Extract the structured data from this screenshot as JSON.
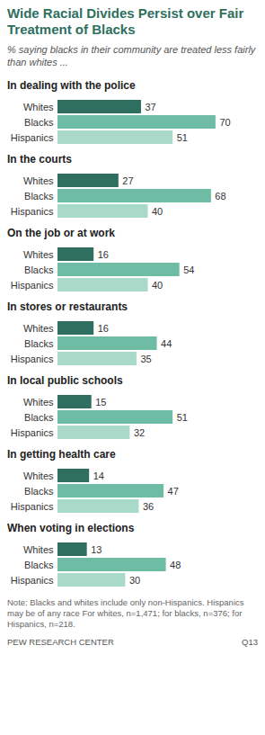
{
  "title": "Wide Racial Divides Persist over Fair Treatment of Blacks",
  "subtitle": "% saying blacks in their community are treated less fairly than whites ...",
  "note": "Note: Blacks and whites include only non-Hispanics. Hispanics may be of any race For whites, n=1,471; for blacks, n=376; for Hispanics, n=218.",
  "source": "PEW RESEARCH CENTER",
  "code": "Q13",
  "chart_data": [
    {
      "type": "bar",
      "title": "In dealing with the police",
      "categories": [
        "Whites",
        "Blacks",
        "Hispanics"
      ],
      "values": [
        37,
        70,
        51
      ],
      "colors": [
        "#2e6f60",
        "#6dbca3",
        "#a9d9c8"
      ],
      "orientation": "horizontal",
      "data_labels": true,
      "tick_labels": "y",
      "xlim": [
        0,
        80
      ],
      "xticks": []
    },
    {
      "type": "bar",
      "title": "In the courts",
      "categories": [
        "Whites",
        "Blacks",
        "Hispanics"
      ],
      "values": [
        27,
        68,
        40
      ],
      "colors": [
        "#2e6f60",
        "#6dbca3",
        "#a9d9c8"
      ],
      "orientation": "horizontal",
      "data_labels": true,
      "tick_labels": "y",
      "xlim": [
        0,
        80
      ],
      "xticks": []
    },
    {
      "type": "bar",
      "title": "On the job or at work",
      "categories": [
        "Whites",
        "Blacks",
        "Hispanics"
      ],
      "values": [
        16,
        54,
        40
      ],
      "colors": [
        "#2e6f60",
        "#6dbca3",
        "#a9d9c8"
      ],
      "orientation": "horizontal",
      "data_labels": true,
      "tick_labels": "y",
      "xlim": [
        0,
        80
      ],
      "xticks": []
    },
    {
      "type": "bar",
      "title": "In stores or restaurants",
      "categories": [
        "Whites",
        "Blacks",
        "Hispanics"
      ],
      "values": [
        16,
        44,
        35
      ],
      "colors": [
        "#2e6f60",
        "#6dbca3",
        "#a9d9c8"
      ],
      "orientation": "horizontal",
      "data_labels": true,
      "tick_labels": "y",
      "xlim": [
        0,
        80
      ],
      "xticks": []
    },
    {
      "type": "bar",
      "title": "In local public schools",
      "categories": [
        "Whites",
        "Blacks",
        "Hispanics"
      ],
      "values": [
        15,
        51,
        32
      ],
      "colors": [
        "#2e6f60",
        "#6dbca3",
        "#a9d9c8"
      ],
      "orientation": "horizontal",
      "data_labels": true,
      "tick_labels": "y",
      "xlim": [
        0,
        80
      ],
      "xticks": []
    },
    {
      "type": "bar",
      "title": "In getting health care",
      "categories": [
        "Whites",
        "Blacks",
        "Hispanics"
      ],
      "values": [
        14,
        47,
        36
      ],
      "colors": [
        "#2e6f60",
        "#6dbca3",
        "#a9d9c8"
      ],
      "orientation": "horizontal",
      "data_labels": true,
      "tick_labels": "y",
      "xlim": [
        0,
        80
      ],
      "xticks": []
    },
    {
      "type": "bar",
      "title": "When voting in elections",
      "categories": [
        "Whites",
        "Blacks",
        "Hispanics"
      ],
      "values": [
        13,
        48,
        30
      ],
      "colors": [
        "#2e6f60",
        "#6dbca3",
        "#a9d9c8"
      ],
      "orientation": "horizontal",
      "data_labels": true,
      "tick_labels": "y",
      "xlim": [
        0,
        80
      ],
      "xticks": []
    }
  ]
}
